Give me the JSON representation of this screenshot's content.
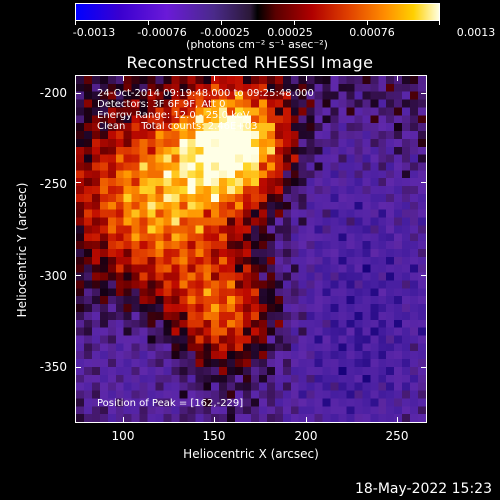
{
  "colorbar": {
    "ticks": [
      "-0.0013",
      "-0.00076",
      "-0.00025",
      "0.00025",
      "0.00076",
      "0.0013"
    ],
    "units": "(photons cm⁻² s⁻¹ asec⁻²)"
  },
  "title": "Reconstructed RHESSI Image",
  "info": {
    "line1": "24-Oct-2014 09:19:48.000 to 09:25:48.000",
    "line2": "Detectors: 3F 6F 9F, Att 0",
    "line3": "Energy Range: 12.0 - 25.0 keV",
    "line4": "Clean     Total counts: 2.46E+03",
    "peak": "Position of Peak = [162,-229]"
  },
  "axes": {
    "xlabel": "Heliocentric X (arcsec)",
    "ylabel": "Heliocentric Y (arcsec)",
    "xticks": [
      "100",
      "150",
      "200",
      "250"
    ],
    "yticks": [
      "-200",
      "-250",
      "-300",
      "-350"
    ],
    "xlim": [
      73,
      267
    ],
    "ylim": [
      -383,
      -188
    ]
  },
  "timestamp": "18-May-2022 15:23"
}
